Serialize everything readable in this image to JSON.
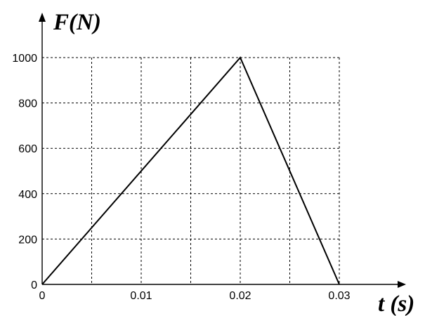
{
  "chart_data": {
    "type": "line",
    "xlabel": "t (s)",
    "ylabel": "F(N)",
    "xlim": [
      0,
      0.03
    ],
    "ylim": [
      0,
      1000
    ],
    "x_ticks": [
      "0",
      "0.01",
      "0.02",
      "0.03"
    ],
    "y_ticks": [
      "0",
      "200",
      "400",
      "600",
      "800",
      "1000"
    ],
    "grid": true,
    "series": [
      {
        "x": [
          0,
          0.02,
          0.03
        ],
        "y": [
          0,
          1000,
          0
        ]
      }
    ]
  }
}
